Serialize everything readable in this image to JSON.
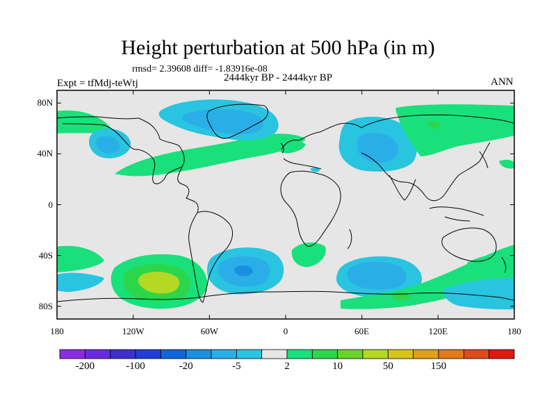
{
  "title": "Height perturbation at 500 hPa (in m)",
  "stats_line": "rmsd= 2.39608 diff= -1.83916e-08",
  "experiment_label": "Expt = tfMdj-teWtj",
  "period_label": "2444kyr BP - 2444kyr BP",
  "season_label": "ANN",
  "map": {
    "projection": "cylindrical equidistant",
    "lon_range": [
      -180,
      180
    ],
    "lat_range": [
      -90,
      90
    ],
    "ocean_land_background": "#e6e6e6",
    "coastline_color": "#000000"
  },
  "axes": {
    "y_ticks": [
      {
        "label": "80N",
        "lat": 80
      },
      {
        "label": "40N",
        "lat": 40
      },
      {
        "label": "0",
        "lat": 0
      },
      {
        "label": "40S",
        "lat": -40
      },
      {
        "label": "80S",
        "lat": -80
      }
    ],
    "x_ticks": [
      {
        "label": "180",
        "lon": -180
      },
      {
        "label": "120W",
        "lon": -120
      },
      {
        "label": "60W",
        "lon": -60
      },
      {
        "label": "0",
        "lon": 0
      },
      {
        "label": "60E",
        "lon": 60
      },
      {
        "label": "120E",
        "lon": 120
      },
      {
        "label": "180",
        "lon": 180
      }
    ]
  },
  "colorbar": {
    "colors": [
      "#8a2be2",
      "#6a2be0",
      "#3c2fd0",
      "#1f3fd8",
      "#1066d8",
      "#1a8fe0",
      "#2aaee8",
      "#29c4e0",
      "#e6e6e6",
      "#19e07a",
      "#2bd64a",
      "#6ad22a",
      "#b4d823",
      "#d8c41a",
      "#e0a01a",
      "#e07a1a",
      "#e04a1a",
      "#e01a10"
    ],
    "tick_labels": [
      {
        "label": "-200",
        "boundary": 1
      },
      {
        "label": "-100",
        "boundary": 3
      },
      {
        "label": "-20",
        "boundary": 5
      },
      {
        "label": "-5",
        "boundary": 7
      },
      {
        "label": "2",
        "boundary": 9
      },
      {
        "label": "10",
        "boundary": 11
      },
      {
        "label": "50",
        "boundary": 13
      },
      {
        "label": "150",
        "boundary": 15
      }
    ]
  }
}
